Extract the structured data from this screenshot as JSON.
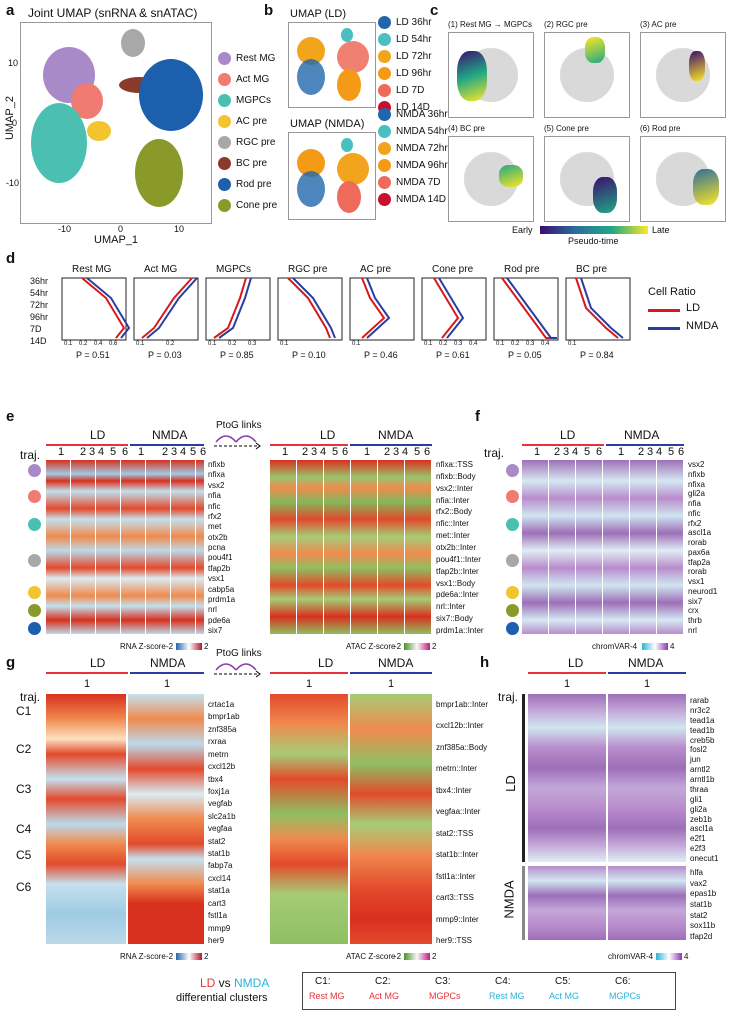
{
  "panels": [
    "a",
    "b",
    "c",
    "d",
    "e",
    "f",
    "g",
    "h"
  ],
  "a": {
    "title": "Joint UMAP (snRNA & snATAC)",
    "xlabel": "UMAP_1",
    "ylabel": "UMAP_2",
    "xticks": [
      "-10",
      "0",
      "10"
    ],
    "yticks": [
      "10",
      "0",
      "-10"
    ],
    "legend": [
      {
        "label": "Rest MG",
        "color": "#a98ac8"
      },
      {
        "label": "Act MG",
        "color": "#f07b72"
      },
      {
        "label": "MGPCs",
        "color": "#4bbfb2"
      },
      {
        "label": "AC pre",
        "color": "#f2c430"
      },
      {
        "label": "RGC pre",
        "color": "#a8a8a8"
      },
      {
        "label": "BC pre",
        "color": "#8a3a2a"
      },
      {
        "label": "Rod pre",
        "color": "#1b5fad"
      },
      {
        "label": "Cone pre",
        "color": "#8a9a2a"
      }
    ]
  },
  "b": {
    "title1": "UMAP (LD)",
    "title2": "UMAP (NMDA)",
    "legend_ld": [
      {
        "label": "LD 36hr",
        "color": "#2166ac"
      },
      {
        "label": "LD 54hr",
        "color": "#4bbfc0"
      },
      {
        "label": "LD 72hr",
        "color": "#f2a41c"
      },
      {
        "label": "LD 96hr",
        "color": "#f49a16"
      },
      {
        "label": "LD 7D",
        "color": "#ee6a5a"
      },
      {
        "label": "LD 14D",
        "color": "#c8102e"
      }
    ],
    "legend_nmda": [
      {
        "label": "NMDA 36hr",
        "color": "#2166ac"
      },
      {
        "label": "NMDA 54hr",
        "color": "#4bbfc0"
      },
      {
        "label": "NMDA 72hr",
        "color": "#f2a41c"
      },
      {
        "label": "NMDA 96hr",
        "color": "#f49a16"
      },
      {
        "label": "NMDA 7D",
        "color": "#ee6a5a"
      },
      {
        "label": "NMDA 14D",
        "color": "#c8102e"
      }
    ]
  },
  "c": {
    "titles": [
      "(1) Rest MG → MGPCs",
      "(2) RGC pre",
      "(3) AC pre",
      "(4) BC pre",
      "(5) Cone pre",
      "(6) Rod pre"
    ],
    "cbar_left": "Early",
    "cbar_right": "Late",
    "cbar_title": "Pseudo-time"
  },
  "d": {
    "yticks": [
      "36hr",
      "54hr",
      "72hr",
      "96hr",
      "7D",
      "14D"
    ],
    "legend_title": "Cell Ratio",
    "legend": [
      {
        "label": "LD",
        "color": "#d7191c"
      },
      {
        "label": "NMDA",
        "color": "#2b3ea0"
      }
    ],
    "panels": [
      {
        "title": "Rest MG",
        "p": "P = 0.51",
        "xt": [
          "0.1",
          "0.2",
          "0.4",
          "0.6"
        ]
      },
      {
        "title": "Act MG",
        "p": "P = 0.03",
        "xt": [
          "0.1",
          "0.2"
        ]
      },
      {
        "title": "MGPCs",
        "p": "P = 0.85",
        "xt": [
          "0.1",
          "0.2",
          "0.3"
        ]
      },
      {
        "title": "RGC pre",
        "p": "P = 0.10",
        "xt": [
          "0.1"
        ]
      },
      {
        "title": "AC pre",
        "p": "P = 0.46",
        "xt": [
          "0.1"
        ]
      },
      {
        "title": "Cone pre",
        "p": "P = 0.61",
        "xt": [
          "0.1",
          "0.2",
          "0.3",
          "0.4"
        ]
      },
      {
        "title": "Rod pre",
        "p": "P = 0.05",
        "xt": [
          "0.1",
          "0.2",
          "0.3",
          "0.4"
        ]
      },
      {
        "title": "BC pre",
        "p": "P = 0.84",
        "xt": [
          "0.1"
        ]
      }
    ]
  },
  "e": {
    "traj": "traj.",
    "ld": "LD",
    "nmda": "NMDA",
    "ptog": "PtoG links",
    "cols": [
      "1",
      "2",
      "3",
      "4",
      "5",
      "6"
    ],
    "rna_genes": [
      "nfixb",
      "nfixa",
      "vsx2",
      "nfia",
      "nfic",
      "rfx2",
      "met",
      "otx2b",
      "pcna",
      "pou4f1",
      "tfap2b",
      "vsx1",
      "cabp5a",
      "prdm1a",
      "nrl",
      "pde6a",
      "six7"
    ],
    "atac_genes": [
      "nfixa::TSS",
      "nfixb::Body",
      "vsx2::Inter",
      "nfia::Inter",
      "rfx2::Body",
      "nfic::Inter",
      "met::Inter",
      "otx2b::Inter",
      "pou4f1::Inter",
      "tfap2b::Inter",
      "vsx1::Body",
      "pde6a::Inter",
      "nrl::Inter",
      "six7::Body",
      "prdm1a::Inter"
    ],
    "rna_scale": "RNA Z-score",
    "atac_scale": "ATAC Z-score",
    "scale_min": "-2",
    "scale_max": "2"
  },
  "f": {
    "traj": "traj.",
    "ld": "LD",
    "nmda": "NMDA",
    "cols": [
      "1",
      "2",
      "3",
      "4",
      "5",
      "6"
    ],
    "genes": [
      "vsx2",
      "nfixb",
      "nfixa",
      "gli2a",
      "nfia",
      "nfic",
      "rfx2",
      "ascl1a",
      "rorab",
      "pax6a",
      "tfap2a",
      "rorab",
      "vsx1",
      "neurod1",
      "six7",
      "crx",
      "thrb",
      "nrl"
    ],
    "scale": "chromVAR",
    "scale_min": "-4",
    "scale_max": "4"
  },
  "g": {
    "traj": "traj.",
    "ld": "LD",
    "nmda": "NMDA",
    "ptog": "PtoG links",
    "col": "1",
    "clusters": [
      "C1",
      "C2",
      "C3",
      "C4",
      "C5",
      "C6"
    ],
    "rna_genes": [
      "crtac1a",
      "bmpr1ab",
      "znf385a",
      "rxraa",
      "metrn",
      "cxcl12b",
      "tbx4",
      "foxj1a",
      "vegfab",
      "slc2a1b",
      "vegfaa",
      "stat2",
      "stat1b",
      "fabp7a",
      "cxcl14",
      "stat1a",
      "cart3",
      "fstl1a",
      "mmp9",
      "her9"
    ],
    "atac_genes": [
      "bmpr1ab::Inter",
      "cxcl12b::Inter",
      "znf385a::Body",
      "metrn::Inter",
      "tbx4::Inter",
      "vegfaa::Inter",
      "stat2::TSS",
      "stat1b::Inter",
      "fstl1a::Inter",
      "cart3::TSS",
      "mmp9::Inter",
      "her9::TSS"
    ],
    "rna_scale": "RNA Z-score",
    "atac_scale": "ATAC Z-score",
    "scale_min": "-2",
    "scale_max": "2"
  },
  "h": {
    "traj": "traj.",
    "ld": "LD",
    "nmda": "NMDA",
    "col": "1",
    "ld_genes": [
      "rarab",
      "nr3c2",
      "tead1a",
      "tead1b",
      "creb5b",
      "fosl2",
      "jun",
      "arntl2",
      "arntl1b",
      "thraa",
      "gli1",
      "gli2a",
      "zeb1b",
      "ascl1a",
      "e2f1",
      "e2f3",
      "onecut1"
    ],
    "nmda_genes": [
      "hlfa",
      "vax2",
      "epas1b",
      "stat1b",
      "stat2",
      "sox11b",
      "tfap2d"
    ],
    "scale": "chromVAR",
    "scale_min": "-4",
    "scale_max": "4"
  },
  "footer": {
    "ld": "LD",
    "vs": " vs ",
    "nmda": "NMDA",
    "sub": "differential clusters",
    "clusters": [
      {
        "c": "C1:",
        "n": "Rest MG",
        "color": "#e8323a"
      },
      {
        "c": "C2:",
        "n": "Act MG",
        "color": "#e8323a"
      },
      {
        "c": "C3:",
        "n": "MGPCs",
        "color": "#e8323a"
      },
      {
        "c": "C4:",
        "n": "Rest MG",
        "color": "#2ab3d8"
      },
      {
        "c": "C5:",
        "n": "Act MG",
        "color": "#2ab3d8"
      },
      {
        "c": "C6:",
        "n": "MGPCs",
        "color": "#2ab3d8"
      }
    ]
  }
}
